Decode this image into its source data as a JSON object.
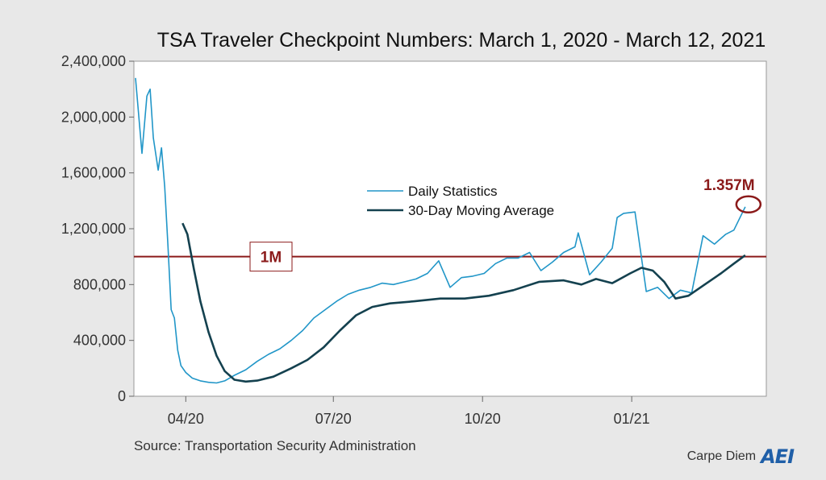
{
  "chart_data": {
    "type": "line",
    "title": "TSA Traveler Checkpoint Numbers: March 1, 2020 - March 12, 2021",
    "x_tick_labels": [
      "04/20",
      "07/20",
      "10/20",
      "01/21"
    ],
    "x_tick_dates": [
      "2020-04-01",
      "2020-07-01",
      "2020-10-01",
      "2021-01-01"
    ],
    "x_range": [
      "2020-03-01",
      "2021-03-12"
    ],
    "y_range": [
      0,
      2400000
    ],
    "y_ticks": [
      0,
      400000,
      800000,
      1200000,
      1600000,
      2000000,
      2400000
    ],
    "y_tick_labels": [
      "0",
      "400,000",
      "800,000",
      "1,200,000",
      "1,600,000",
      "2,000,000",
      "2,400,000"
    ],
    "grid": false,
    "legend_position": "center",
    "series": [
      {
        "name": "Daily Statistics",
        "color": "#2196c8",
        "points": [
          [
            "2020-03-01",
            2280000
          ],
          [
            "2020-03-05",
            1740000
          ],
          [
            "2020-03-08",
            2150000
          ],
          [
            "2020-03-10",
            2200000
          ],
          [
            "2020-03-12",
            1850000
          ],
          [
            "2020-03-15",
            1620000
          ],
          [
            "2020-03-17",
            1780000
          ],
          [
            "2020-03-19",
            1500000
          ],
          [
            "2020-03-21",
            1080000
          ],
          [
            "2020-03-23",
            620000
          ],
          [
            "2020-03-25",
            560000
          ],
          [
            "2020-03-27",
            330000
          ],
          [
            "2020-03-29",
            220000
          ],
          [
            "2020-04-01",
            170000
          ],
          [
            "2020-04-05",
            130000
          ],
          [
            "2020-04-10",
            110000
          ],
          [
            "2020-04-15",
            100000
          ],
          [
            "2020-04-20",
            95000
          ],
          [
            "2020-04-25",
            110000
          ],
          [
            "2020-05-01",
            150000
          ],
          [
            "2020-05-08",
            190000
          ],
          [
            "2020-05-15",
            250000
          ],
          [
            "2020-05-22",
            300000
          ],
          [
            "2020-05-29",
            340000
          ],
          [
            "2020-06-05",
            400000
          ],
          [
            "2020-06-12",
            470000
          ],
          [
            "2020-06-19",
            560000
          ],
          [
            "2020-06-26",
            620000
          ],
          [
            "2020-07-03",
            680000
          ],
          [
            "2020-07-10",
            730000
          ],
          [
            "2020-07-17",
            760000
          ],
          [
            "2020-07-24",
            780000
          ],
          [
            "2020-07-31",
            810000
          ],
          [
            "2020-08-07",
            800000
          ],
          [
            "2020-08-14",
            820000
          ],
          [
            "2020-08-21",
            840000
          ],
          [
            "2020-08-28",
            880000
          ],
          [
            "2020-09-04",
            970000
          ],
          [
            "2020-09-11",
            780000
          ],
          [
            "2020-09-18",
            850000
          ],
          [
            "2020-09-25",
            860000
          ],
          [
            "2020-10-02",
            880000
          ],
          [
            "2020-10-09",
            950000
          ],
          [
            "2020-10-16",
            990000
          ],
          [
            "2020-10-23",
            990000
          ],
          [
            "2020-10-30",
            1030000
          ],
          [
            "2020-11-06",
            900000
          ],
          [
            "2020-11-13",
            960000
          ],
          [
            "2020-11-20",
            1030000
          ],
          [
            "2020-11-27",
            1070000
          ],
          [
            "2020-11-29",
            1170000
          ],
          [
            "2020-12-06",
            870000
          ],
          [
            "2020-12-13",
            960000
          ],
          [
            "2020-12-20",
            1060000
          ],
          [
            "2020-12-23",
            1280000
          ],
          [
            "2020-12-27",
            1310000
          ],
          [
            "2021-01-03",
            1320000
          ],
          [
            "2021-01-10",
            750000
          ],
          [
            "2021-01-17",
            780000
          ],
          [
            "2021-01-24",
            700000
          ],
          [
            "2021-01-31",
            760000
          ],
          [
            "2021-02-07",
            740000
          ],
          [
            "2021-02-14",
            1150000
          ],
          [
            "2021-02-21",
            1090000
          ],
          [
            "2021-02-28",
            1160000
          ],
          [
            "2021-03-05",
            1190000
          ],
          [
            "2021-03-12",
            1357000
          ]
        ]
      },
      {
        "name": "30-Day Moving Average",
        "color": "#14414f",
        "points": [
          [
            "2020-03-30",
            1240000
          ],
          [
            "2020-04-02",
            1160000
          ],
          [
            "2020-04-06",
            910000
          ],
          [
            "2020-04-10",
            680000
          ],
          [
            "2020-04-15",
            460000
          ],
          [
            "2020-04-20",
            290000
          ],
          [
            "2020-04-25",
            180000
          ],
          [
            "2020-05-01",
            118000
          ],
          [
            "2020-05-08",
            105000
          ],
          [
            "2020-05-15",
            112000
          ],
          [
            "2020-05-25",
            140000
          ],
          [
            "2020-06-05",
            200000
          ],
          [
            "2020-06-15",
            260000
          ],
          [
            "2020-06-25",
            350000
          ],
          [
            "2020-07-05",
            470000
          ],
          [
            "2020-07-15",
            580000
          ],
          [
            "2020-07-25",
            640000
          ],
          [
            "2020-08-05",
            665000
          ],
          [
            "2020-08-20",
            680000
          ],
          [
            "2020-09-05",
            700000
          ],
          [
            "2020-09-20",
            700000
          ],
          [
            "2020-10-05",
            720000
          ],
          [
            "2020-10-20",
            760000
          ],
          [
            "2020-11-05",
            820000
          ],
          [
            "2020-11-20",
            830000
          ],
          [
            "2020-12-01",
            800000
          ],
          [
            "2020-12-10",
            840000
          ],
          [
            "2020-12-20",
            810000
          ],
          [
            "2020-12-31",
            880000
          ],
          [
            "2021-01-07",
            920000
          ],
          [
            "2021-01-14",
            900000
          ],
          [
            "2021-01-21",
            820000
          ],
          [
            "2021-01-28",
            700000
          ],
          [
            "2021-02-05",
            720000
          ],
          [
            "2021-02-15",
            800000
          ],
          [
            "2021-02-25",
            880000
          ],
          [
            "2021-03-05",
            950000
          ],
          [
            "2021-03-12",
            1010000
          ]
        ]
      }
    ],
    "reference_line": {
      "y": 1000000,
      "label": "1M",
      "color": "#8b1a1a"
    },
    "annotation": {
      "label": "1.357M",
      "x": "2021-03-12",
      "y": 1357000,
      "color": "#8b1a1a"
    }
  },
  "source": "Source: Transportation Security Administration",
  "brand": {
    "text": "Carpe Diem",
    "logo": "AEI",
    "logo_color": "#1f5fa8"
  }
}
